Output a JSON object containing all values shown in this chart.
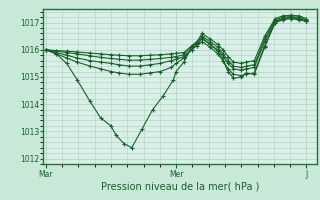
{
  "background_color": "#c8e8d8",
  "plot_bg_color": "#d8f0e8",
  "grid_color": "#b0cfc0",
  "line_color": "#1a5e2a",
  "marker": "+",
  "marker_size": 3,
  "marker_lw": 0.8,
  "line_width": 0.8,
  "ylim": [
    1011.8,
    1017.5
  ],
  "yticks": [
    1012,
    1013,
    1014,
    1015,
    1016,
    1017
  ],
  "xlabel": "Pression niveau de la mer( hPa )",
  "xtick_labels": [
    "Mar",
    "Mer",
    "J"
  ],
  "xtick_positions": [
    0.0,
    0.5,
    1.0
  ],
  "xlim": [
    -0.01,
    1.04
  ],
  "lines": [
    {
      "x": [
        0.0,
        0.04,
        0.08,
        0.12,
        0.17,
        0.21,
        0.25,
        0.27,
        0.3,
        0.33,
        0.37,
        0.41,
        0.45,
        0.49,
        0.5,
        0.53,
        0.56,
        0.58,
        0.6,
        0.63,
        0.66,
        0.68,
        0.7,
        0.72,
        0.75,
        0.77,
        0.8,
        0.84,
        0.88,
        0.91,
        0.94,
        0.97,
        1.0
      ],
      "y": [
        1016.0,
        1015.85,
        1015.5,
        1014.9,
        1014.1,
        1013.5,
        1013.2,
        1012.85,
        1012.55,
        1012.4,
        1013.1,
        1013.8,
        1014.3,
        1014.9,
        1015.2,
        1015.55,
        1016.1,
        1016.3,
        1016.45,
        1016.2,
        1015.95,
        1015.6,
        1015.2,
        1014.95,
        1015.0,
        1015.15,
        1015.1,
        1016.1,
        1017.0,
        1017.15,
        1017.2,
        1017.15,
        1017.05
      ]
    },
    {
      "x": [
        0.0,
        0.04,
        0.08,
        0.12,
        0.17,
        0.21,
        0.25,
        0.28,
        0.32,
        0.36,
        0.4,
        0.44,
        0.48,
        0.5,
        0.53,
        0.56,
        0.58,
        0.6,
        0.63,
        0.66,
        0.68,
        0.7,
        0.72,
        0.75,
        0.77,
        0.8,
        0.84,
        0.88,
        0.91,
        0.94,
        0.97,
        1.0
      ],
      "y": [
        1016.0,
        1015.85,
        1015.7,
        1015.55,
        1015.4,
        1015.3,
        1015.2,
        1015.15,
        1015.1,
        1015.1,
        1015.15,
        1015.2,
        1015.35,
        1015.5,
        1015.7,
        1016.0,
        1016.15,
        1016.3,
        1016.1,
        1015.85,
        1015.6,
        1015.3,
        1015.1,
        1015.05,
        1015.1,
        1015.15,
        1016.15,
        1017.0,
        1017.1,
        1017.15,
        1017.1,
        1017.05
      ]
    },
    {
      "x": [
        0.0,
        0.04,
        0.08,
        0.12,
        0.17,
        0.21,
        0.25,
        0.28,
        0.32,
        0.36,
        0.4,
        0.44,
        0.48,
        0.5,
        0.53,
        0.56,
        0.58,
        0.6,
        0.63,
        0.66,
        0.68,
        0.7,
        0.72,
        0.75,
        0.77,
        0.8,
        0.84,
        0.88,
        0.91,
        0.94,
        0.97,
        1.0
      ],
      "y": [
        1016.0,
        1015.9,
        1015.8,
        1015.7,
        1015.6,
        1015.55,
        1015.5,
        1015.45,
        1015.4,
        1015.4,
        1015.45,
        1015.5,
        1015.6,
        1015.65,
        1015.75,
        1016.0,
        1016.2,
        1016.4,
        1016.2,
        1016.0,
        1015.75,
        1015.5,
        1015.3,
        1015.25,
        1015.3,
        1015.35,
        1016.3,
        1017.05,
        1017.15,
        1017.18,
        1017.15,
        1017.05
      ]
    },
    {
      "x": [
        0.0,
        0.04,
        0.08,
        0.12,
        0.17,
        0.21,
        0.25,
        0.28,
        0.32,
        0.36,
        0.4,
        0.44,
        0.48,
        0.5,
        0.53,
        0.56,
        0.58,
        0.6,
        0.63,
        0.66,
        0.68,
        0.7,
        0.72,
        0.75,
        0.77,
        0.8,
        0.84,
        0.88,
        0.91,
        0.94,
        0.97,
        1.0
      ],
      "y": [
        1016.0,
        1015.95,
        1015.9,
        1015.85,
        1015.78,
        1015.72,
        1015.68,
        1015.65,
        1015.62,
        1015.62,
        1015.65,
        1015.68,
        1015.72,
        1015.75,
        1015.82,
        1016.1,
        1016.25,
        1016.5,
        1016.3,
        1016.1,
        1015.85,
        1015.6,
        1015.4,
        1015.35,
        1015.4,
        1015.45,
        1016.4,
        1017.1,
        1017.2,
        1017.22,
        1017.2,
        1017.1
      ]
    },
    {
      "x": [
        0.0,
        0.04,
        0.08,
        0.12,
        0.17,
        0.21,
        0.25,
        0.28,
        0.32,
        0.36,
        0.4,
        0.44,
        0.48,
        0.5,
        0.53,
        0.56,
        0.58,
        0.6,
        0.63,
        0.66,
        0.68,
        0.7,
        0.72,
        0.75,
        0.77,
        0.8,
        0.84,
        0.88,
        0.91,
        0.94,
        0.97,
        1.0
      ],
      "y": [
        1016.0,
        1015.97,
        1015.95,
        1015.92,
        1015.88,
        1015.85,
        1015.82,
        1015.8,
        1015.78,
        1015.78,
        1015.8,
        1015.82,
        1015.85,
        1015.87,
        1015.9,
        1016.15,
        1016.3,
        1016.6,
        1016.4,
        1016.2,
        1016.0,
        1015.75,
        1015.55,
        1015.5,
        1015.55,
        1015.6,
        1016.5,
        1017.15,
        1017.25,
        1017.27,
        1017.25,
        1017.15
      ]
    }
  ],
  "ylabel_fontsize": 5.5,
  "xlabel_fontsize": 7,
  "tick_fontsize": 5.5,
  "spine_color": "#2d6e3e"
}
